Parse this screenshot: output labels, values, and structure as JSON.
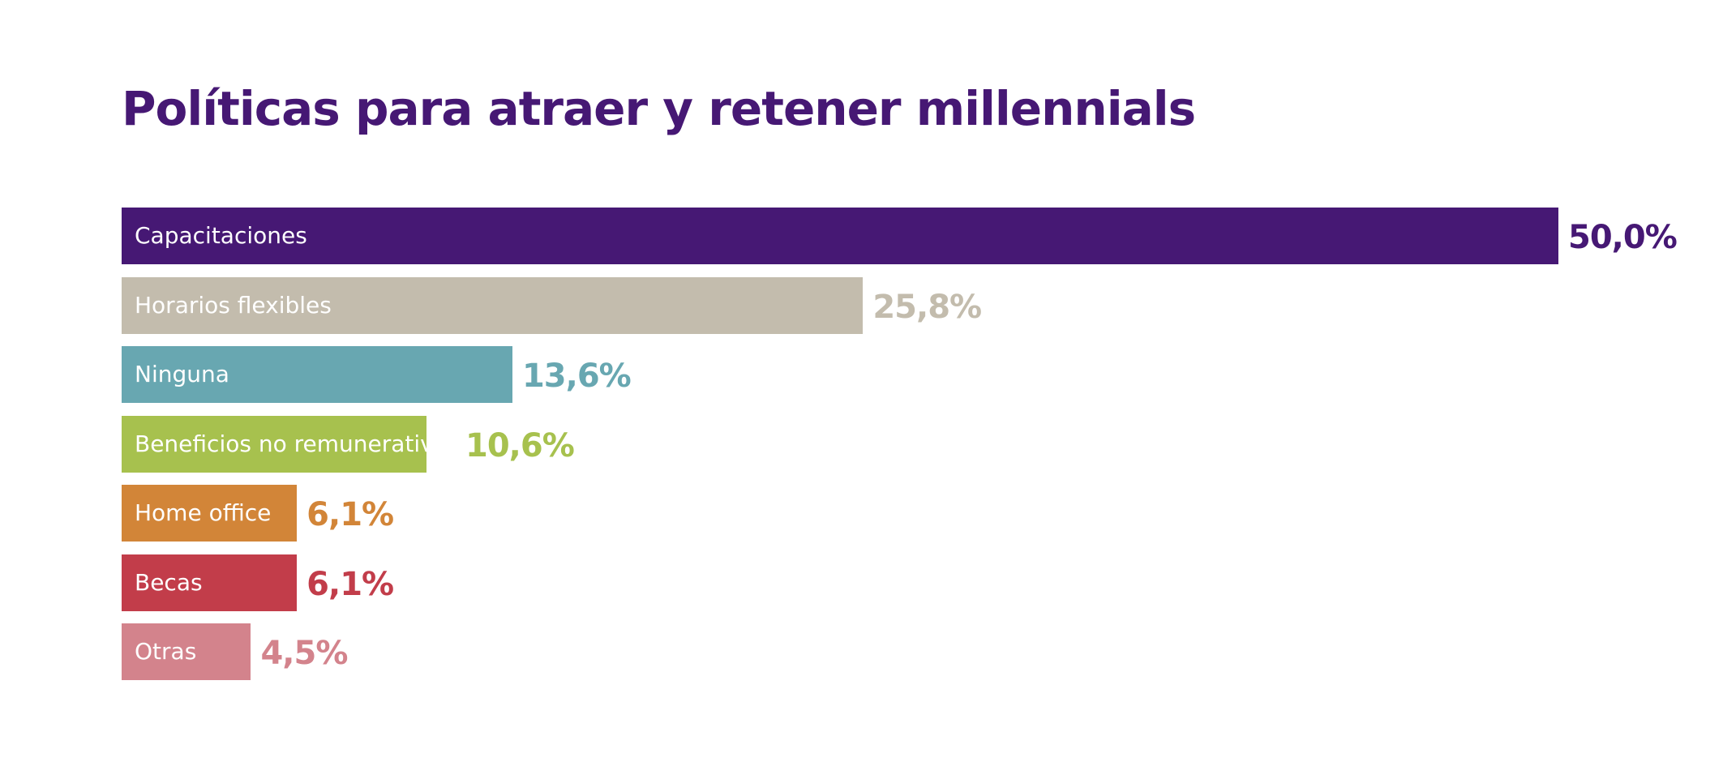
{
  "chart_data": {
    "type": "bar",
    "orientation": "horizontal",
    "title": "Políticas para atraer y retener millennials",
    "categories": [
      "Capacitaciones",
      "Horarios flexibles",
      "Ninguna",
      "Beneficios no remunerativos",
      "Home office",
      "Becas",
      "Otras"
    ],
    "values": [
      50.0,
      25.8,
      13.6,
      10.6,
      6.1,
      6.1,
      4.5
    ],
    "data_labels": [
      "50,0%",
      "25,8%",
      "13,6%",
      "10,6%",
      "6,1%",
      "6,1%",
      "4,5%"
    ],
    "colors": [
      "#461874",
      "#c3bcad",
      "#68a7b1",
      "#a7c14e",
      "#d28538",
      "#c23d4a",
      "#d3838c"
    ],
    "xlim": [
      0,
      50
    ],
    "grid": false,
    "legend": "none"
  }
}
